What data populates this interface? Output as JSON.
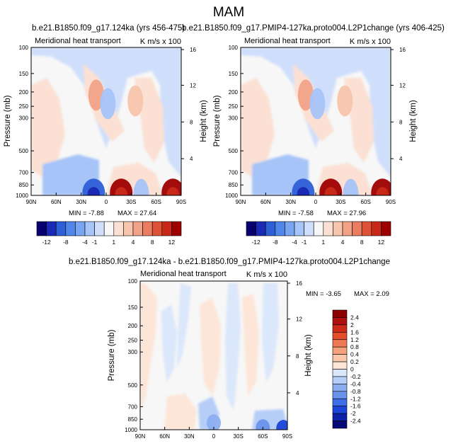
{
  "figure": {
    "title": "MAM"
  },
  "chart_data": [
    {
      "type": "heatmap",
      "title": "b.e21.B1850.f09_g17.124ka (yrs 456-475)",
      "inner_title": "Meridional heat transport",
      "units_label": "K m/s x 100",
      "xlabel": "",
      "ylabel": "Pressure (mb)",
      "ylabel_right": "Height (km)",
      "x_ticks": [
        "90N",
        "60N",
        "30N",
        "0",
        "30S",
        "60S",
        "90S"
      ],
      "y_ticks": [
        "100",
        "150",
        "200",
        "250",
        "300",
        "500",
        "700",
        "850",
        "1000"
      ],
      "y_ticks_right": [
        "16",
        "12",
        "8",
        "4"
      ],
      "min_label": "MIN =  -7.88",
      "max_label": "MAX =  27.64",
      "min": -7.88,
      "max": 27.64,
      "features": [
        {
          "lat": 12,
          "p": 210,
          "value": 4
        },
        {
          "lat": -2,
          "p": 240,
          "value": -2
        },
        {
          "lat": -35,
          "p": 230,
          "value": 2
        },
        {
          "lat": 15,
          "p": 960,
          "value": -8
        },
        {
          "lat": -18,
          "p": 960,
          "value": 12
        },
        {
          "lat": -42,
          "p": 985,
          "value": -2
        },
        {
          "lat": -80,
          "p": 960,
          "value": 12
        }
      ]
    },
    {
      "type": "heatmap",
      "title": "b.e21.B1850.f09_g17.PMIP4-127ka.proto004.L2P1change (yrs 406-425)",
      "inner_title": "Meridional heat transport",
      "units_label": "K m/s x 100",
      "xlabel": "",
      "ylabel": "Pressure (mb)",
      "ylabel_right": "Height (km)",
      "x_ticks": [
        "90N",
        "60N",
        "30N",
        "0",
        "30S",
        "60S",
        "90S"
      ],
      "y_ticks": [
        "100",
        "150",
        "200",
        "250",
        "300",
        "500",
        "700",
        "850",
        "1000"
      ],
      "y_ticks_right": [
        "16",
        "12",
        "8",
        "4"
      ],
      "min_label": "MIN =  -7.58",
      "max_label": "MAX =  27.96",
      "min": -7.58,
      "max": 27.96,
      "features": [
        {
          "lat": 12,
          "p": 210,
          "value": 4
        },
        {
          "lat": -2,
          "p": 240,
          "value": -2
        },
        {
          "lat": -35,
          "p": 230,
          "value": 2
        },
        {
          "lat": 15,
          "p": 960,
          "value": -8
        },
        {
          "lat": -18,
          "p": 960,
          "value": 12
        },
        {
          "lat": -42,
          "p": 985,
          "value": -2
        },
        {
          "lat": -80,
          "p": 960,
          "value": 12
        }
      ]
    },
    {
      "type": "heatmap",
      "title": "b.e21.B1850.f09_g17.124ka - b.e21.B1850.f09_g17.PMIP4-127ka.proto004.L2P1change",
      "inner_title": "Meridional heat transport",
      "units_label": "K m/s x 100",
      "xlabel": "",
      "ylabel": "Pressure (mb)",
      "ylabel_right": "Height (km)",
      "x_ticks": [
        "90N",
        "60N",
        "30N",
        "0",
        "30S",
        "60S",
        "90S"
      ],
      "y_ticks": [
        "100",
        "150",
        "200",
        "250",
        "300",
        "500",
        "700",
        "850",
        "1000"
      ],
      "y_ticks_right": [
        "16",
        "12",
        "8",
        "4"
      ],
      "min_label": "MIN =  -3.65",
      "max_label": "MAX =   2.09",
      "min": -3.65,
      "max": 2.09,
      "features": [
        {
          "lat": 0,
          "p": 900,
          "value": -0.8
        },
        {
          "lat": -60,
          "p": 970,
          "value": -1.2
        },
        {
          "lat": -85,
          "p": 980,
          "value": -2
        }
      ]
    }
  ],
  "colorbars": {
    "full": {
      "labels": [
        "-12",
        "-8",
        "-4",
        "-1",
        "1",
        "4",
        "8",
        "12"
      ],
      "colors": [
        "#08006e",
        "#1a2ab5",
        "#2d5fd6",
        "#4f86ea",
        "#79a6f3",
        "#a6c4f8",
        "#cfdffb",
        "#f7f7f7",
        "#fbe0d3",
        "#f7c4ac",
        "#f1a287",
        "#ea7d61",
        "#dd5236",
        "#c82818",
        "#9e0000"
      ]
    },
    "diff": {
      "labels": [
        "2.4",
        "2",
        "1.6",
        "1.2",
        "0.8",
        "0.4",
        "0.2",
        "0",
        "-0.2",
        "-0.4",
        "-0.8",
        "-1.2",
        "-1.6",
        "-2",
        "-2.4"
      ],
      "colors": [
        "#8b0000",
        "#b00f0f",
        "#cf2a18",
        "#e34e2c",
        "#ee7a55",
        "#f4a27d",
        "#f9c8ac",
        "#fde6d8",
        "#dbe7fb",
        "#b5cdf7",
        "#8caef0",
        "#6a92eb",
        "#3e6fe8",
        "#1b45d6",
        "#0d22a8",
        "#060a74"
      ]
    }
  }
}
